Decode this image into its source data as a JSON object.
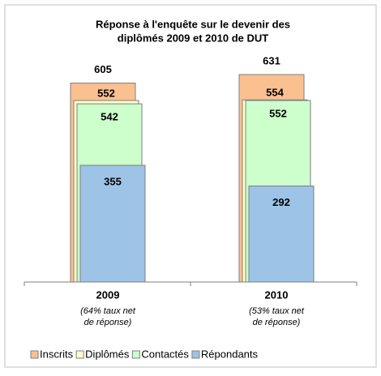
{
  "chart_data": {
    "type": "overlapping_bar",
    "title": [
      "Réponse à l'enquête sur le devenir des",
      "diplômés  2009 et 2010 de DUT"
    ],
    "categories": [
      "2009",
      "2010"
    ],
    "category_notes": [
      [
        "(64% taux net",
        "de réponse)"
      ],
      [
        "(53% taux net",
        "de réponse)"
      ]
    ],
    "series": [
      {
        "name": "Inscrits",
        "color": "#fac090",
        "values": [
          605,
          631
        ]
      },
      {
        "name": "Diplômés",
        "color": "#ffffcc",
        "values": [
          552,
          554
        ]
      },
      {
        "name": "Contactés",
        "color": "#ccffcc",
        "values": [
          542,
          552
        ]
      },
      {
        "name": "Répondants",
        "color": "#9dc3e6",
        "values": [
          355,
          292
        ]
      }
    ],
    "legend": "bottom"
  }
}
